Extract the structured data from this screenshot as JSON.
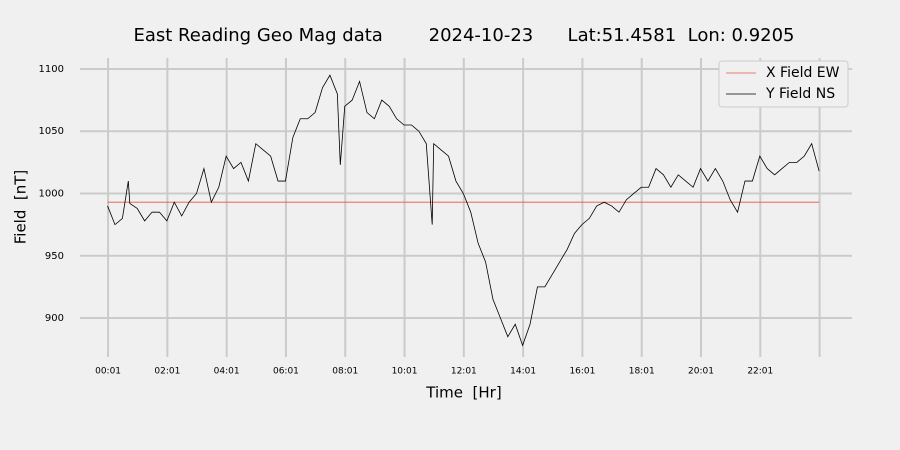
{
  "chart_data": {
    "type": "line",
    "title": "East Reading Geo Mag data        2024-10-23      Lat:51.4581  Lon: 0.9205",
    "x_label": "Time  [Hr]",
    "y_label": "Field  [nT]",
    "x": [
      0,
      0.25,
      0.5,
      0.7,
      0.75,
      1,
      1.25,
      1.5,
      1.75,
      2,
      2.25,
      2.5,
      2.75,
      3,
      3.25,
      3.5,
      3.75,
      4,
      4.25,
      4.5,
      4.75,
      5,
      5.25,
      5.5,
      5.75,
      6,
      6.25,
      6.5,
      6.75,
      7,
      7.25,
      7.5,
      7.75,
      7.85,
      8,
      8.25,
      8.5,
      8.75,
      9,
      9.25,
      9.5,
      9.75,
      10,
      10.25,
      10.5,
      10.75,
      10.95,
      11,
      11.25,
      11.5,
      11.75,
      12,
      12.25,
      12.5,
      12.75,
      13,
      13.25,
      13.5,
      13.75,
      14,
      14.25,
      14.5,
      14.75,
      15,
      15.25,
      15.5,
      15.75,
      16,
      16.25,
      16.5,
      16.75,
      17,
      17.25,
      17.5,
      17.75,
      18,
      18.25,
      18.5,
      18.75,
      19,
      19.25,
      19.5,
      19.75,
      20,
      20.25,
      20.5,
      20.75,
      21,
      21.25,
      21.5,
      21.75,
      22,
      22.25,
      22.5,
      22.75,
      23,
      23.25,
      23.5,
      23.75,
      24
    ],
    "series": [
      {
        "name": "X Field EW",
        "color": "#e8553f",
        "values": [
          993,
          993,
          993,
          993,
          993,
          993,
          993,
          993,
          993,
          993,
          993,
          993,
          993,
          993,
          993,
          993,
          993,
          993,
          993,
          993,
          993,
          993,
          993,
          993,
          993,
          993,
          993,
          993,
          993,
          993,
          993,
          993,
          993,
          993,
          993,
          993,
          993,
          993,
          993,
          993,
          993,
          993,
          993,
          993,
          993,
          993,
          993,
          993,
          993,
          993,
          993,
          993,
          993,
          993,
          993,
          993,
          993,
          993,
          993,
          993,
          993,
          993,
          993,
          993,
          993,
          993,
          993,
          993,
          993,
          993,
          993,
          993,
          993,
          993,
          993,
          993,
          993,
          993,
          993,
          993,
          993,
          993,
          993,
          993,
          993,
          993,
          993,
          993,
          993,
          993,
          993,
          993,
          993,
          993,
          993,
          993,
          993,
          993,
          993,
          993
        ]
      },
      {
        "name": "Y Field NS",
        "color": "#000000",
        "values": [
          990,
          975,
          980,
          1010,
          992,
          988,
          978,
          985,
          985,
          978,
          993,
          982,
          993,
          1000,
          1020,
          993,
          1005,
          1030,
          1020,
          1025,
          1010,
          1040,
          1035,
          1030,
          1010,
          1010,
          1045,
          1060,
          1060,
          1065,
          1085,
          1095,
          1080,
          1023,
          1070,
          1075,
          1090,
          1065,
          1060,
          1075,
          1070,
          1060,
          1055,
          1055,
          1050,
          1040,
          975,
          1040,
          1035,
          1030,
          1010,
          1000,
          985,
          960,
          945,
          915,
          900,
          885,
          895,
          878,
          895,
          925,
          925,
          935,
          945,
          955,
          968,
          975,
          980,
          990,
          993,
          990,
          985,
          995,
          1000,
          1005,
          1005,
          1020,
          1015,
          1005,
          1015,
          1010,
          1005,
          1020,
          1010,
          1020,
          1010,
          995,
          985,
          1010,
          1010,
          1030,
          1020,
          1015,
          1020,
          1025,
          1025,
          1030,
          1040,
          1018
        ]
      }
    ],
    "xlim": [
      -0.93,
      25.11
    ],
    "ylim": [
      868.7,
      1108.8
    ],
    "xticks": [
      {
        "value": 0.0167,
        "label": "00:01"
      },
      {
        "value": 2.0167,
        "label": "02:01"
      },
      {
        "value": 4.0167,
        "label": "04:01"
      },
      {
        "value": 6.0167,
        "label": "06:01"
      },
      {
        "value": 8.0167,
        "label": "08:01"
      },
      {
        "value": 10.0167,
        "label": "10:01"
      },
      {
        "value": 12.0167,
        "label": "12:01"
      },
      {
        "value": 14.0167,
        "label": "14:01"
      },
      {
        "value": 16.0167,
        "label": "16:01"
      },
      {
        "value": 18.0167,
        "label": "18:01"
      },
      {
        "value": 20.0167,
        "label": "20:01"
      },
      {
        "value": 22.0167,
        "label": "22:01"
      },
      {
        "value": 24.0167,
        "label": null
      }
    ],
    "yticks": [
      900,
      950,
      1000,
      1050,
      1100
    ],
    "grid": true,
    "legend": "upper right"
  }
}
